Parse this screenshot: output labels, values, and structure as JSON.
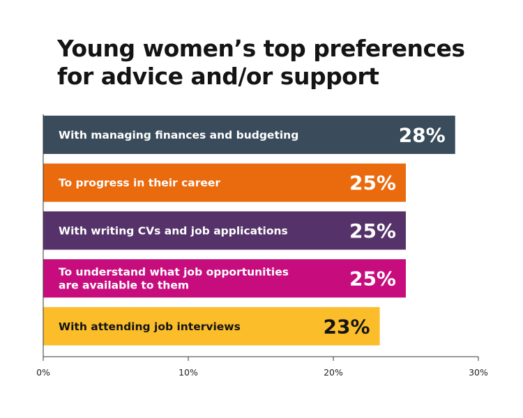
{
  "chart_data": {
    "type": "bar",
    "orientation": "horizontal",
    "title_lines": [
      "Young women’s top preferences",
      "for advice and/or support"
    ],
    "categories": [
      [
        "With managing finances and budgeting"
      ],
      [
        "To progress in their career"
      ],
      [
        "With writing CVs and job applications"
      ],
      [
        "To understand what job opportunities",
        "are available to them"
      ],
      [
        "With attending job interviews"
      ]
    ],
    "values": [
      28.4,
      25,
      25,
      25,
      23.2
    ],
    "value_labels": [
      "28%",
      "25%",
      "25%",
      "25%",
      "23%"
    ],
    "colors": [
      "#3a4c5b",
      "#ea6a0e",
      "#55336a",
      "#c70d7e",
      "#fbbd2a"
    ],
    "label_colors": [
      "#ffffff",
      "#ffffff",
      "#ffffff",
      "#ffffff",
      "#141414"
    ],
    "xlim": [
      0,
      30
    ],
    "x_ticks": [
      0,
      10,
      20,
      30
    ],
    "x_tick_labels": [
      "0%",
      "10%",
      "20%",
      "30%"
    ],
    "grid": false,
    "legend": "none"
  }
}
